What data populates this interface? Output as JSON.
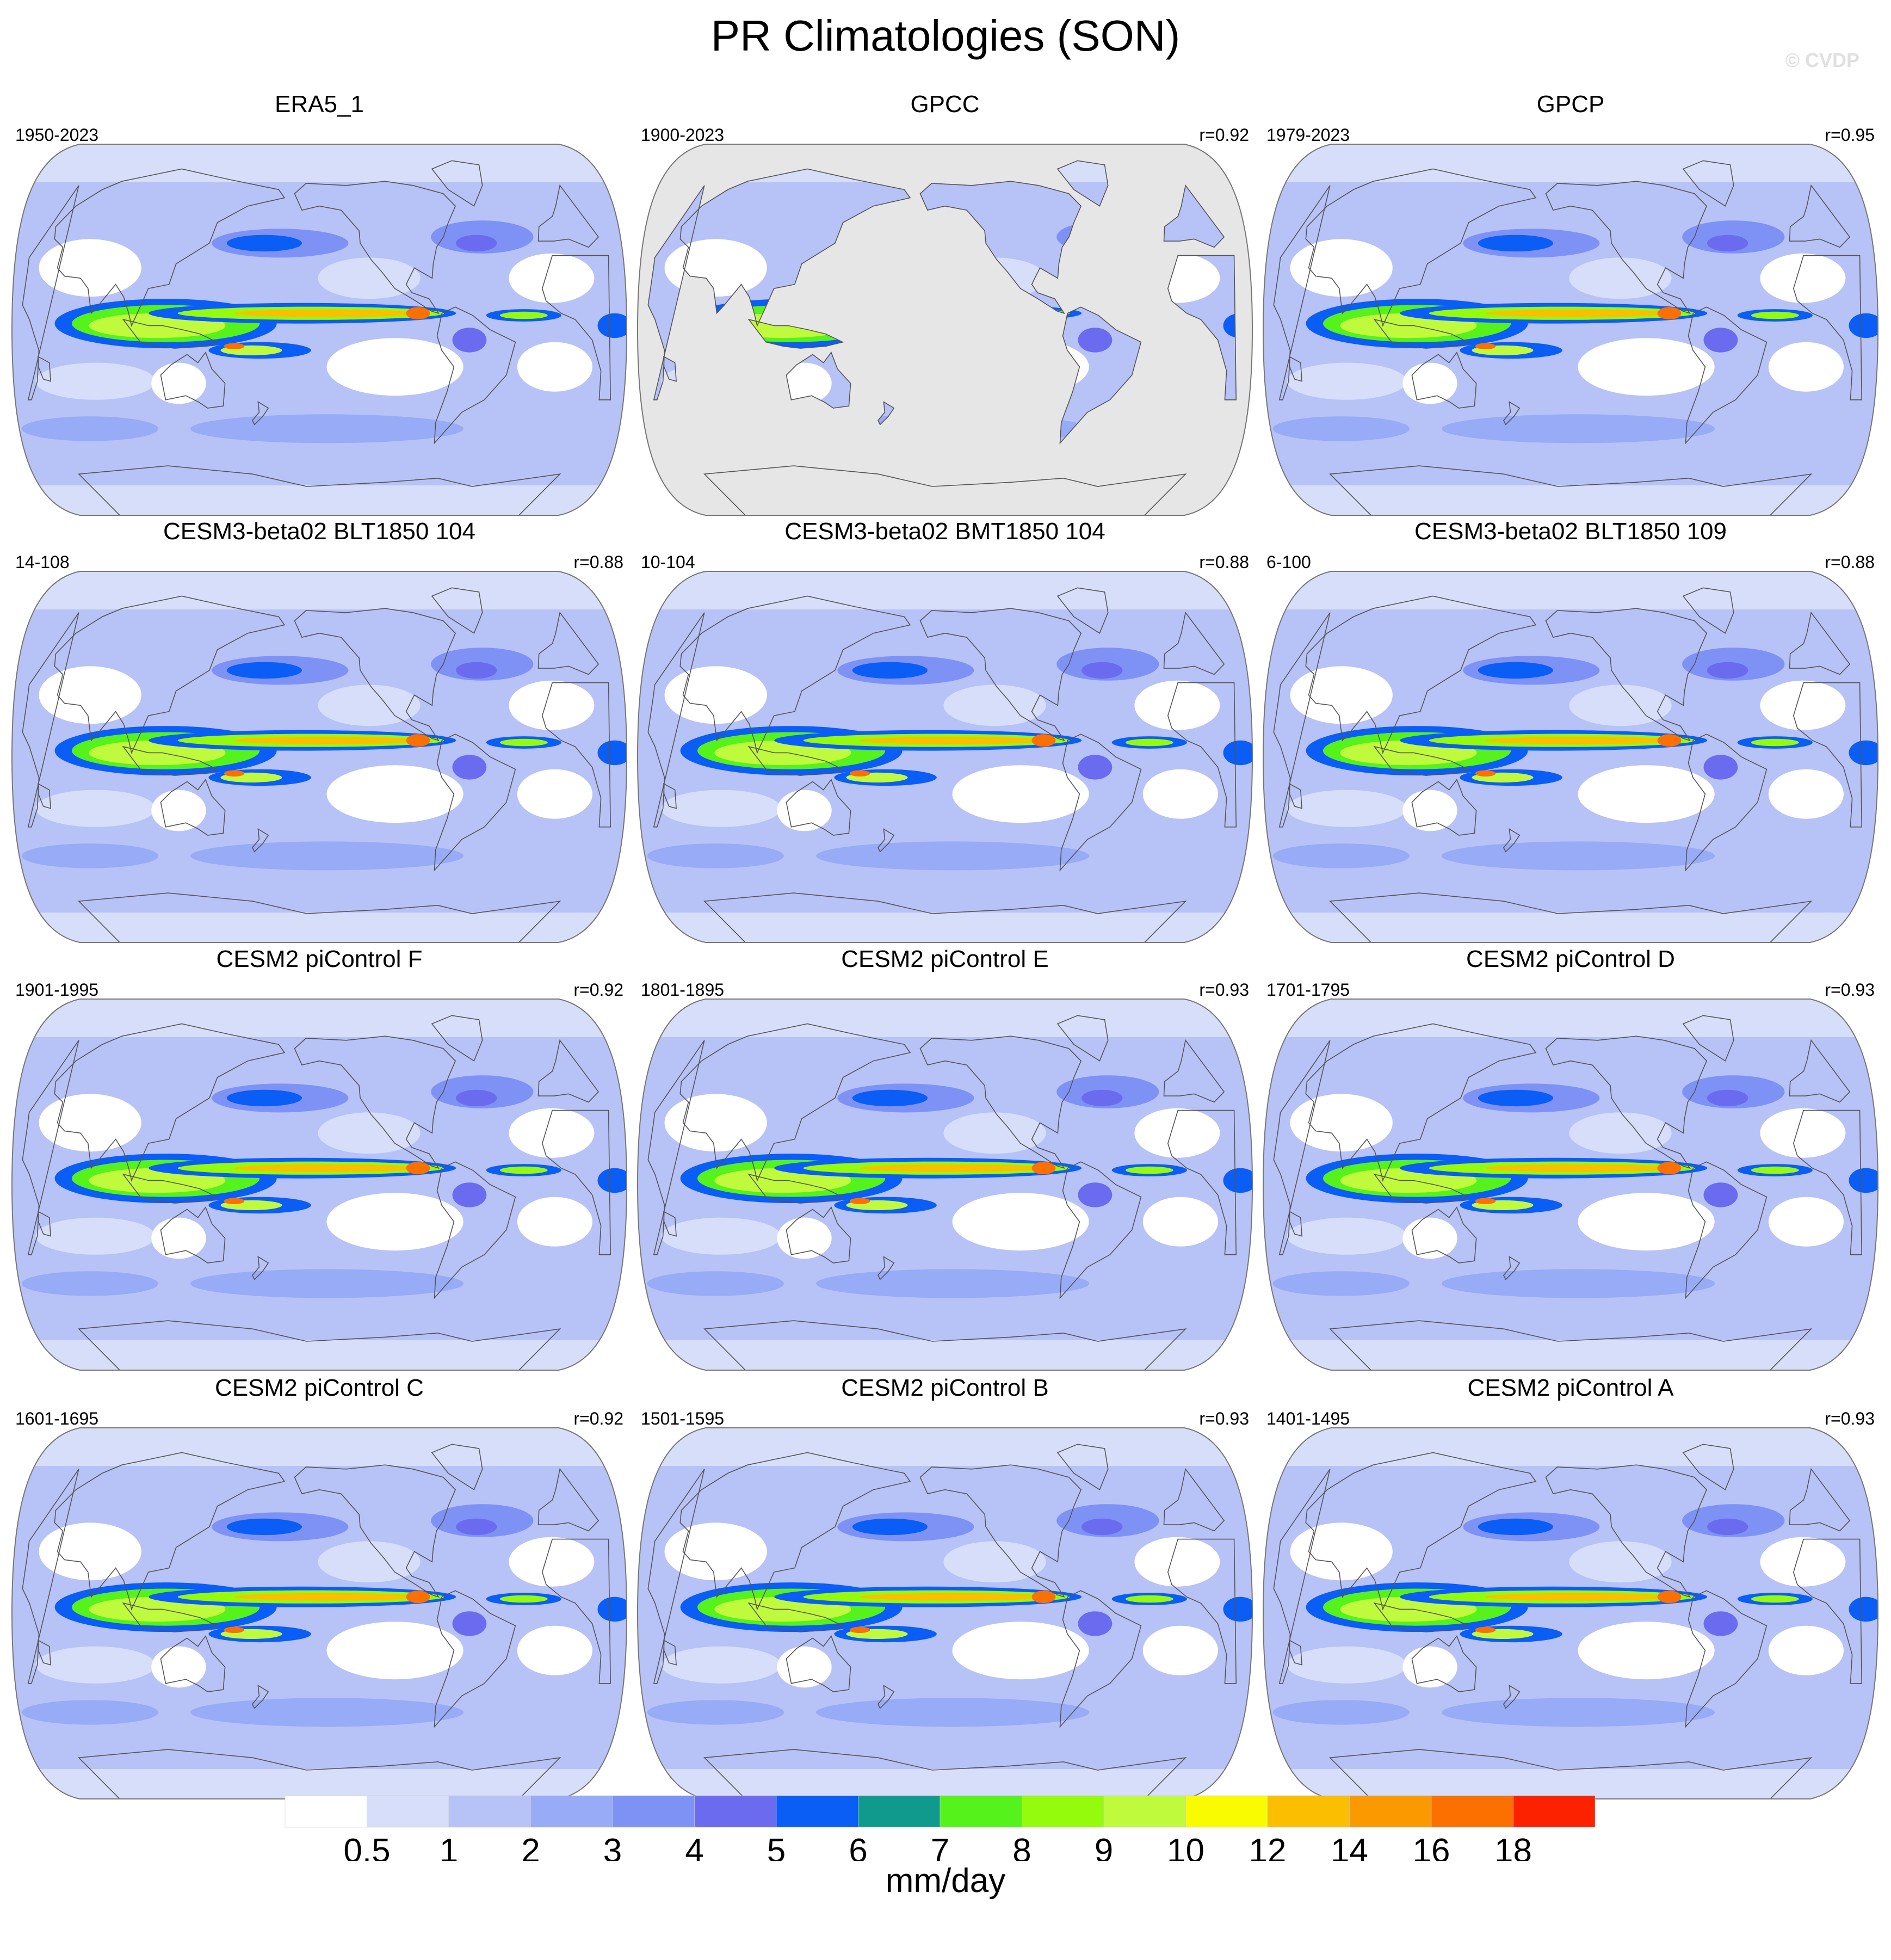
{
  "figure": {
    "title": "PR Climatologies (SON)",
    "watermark": "© CVDP"
  },
  "panels": [
    {
      "name": "ERA5_1",
      "period": "1950-2023",
      "corr": "",
      "ocean_masked": false
    },
    {
      "name": "GPCC",
      "period": "1900-2023",
      "corr": "r=0.92",
      "ocean_masked": true
    },
    {
      "name": "GPCP",
      "period": "1979-2023",
      "corr": "r=0.95",
      "ocean_masked": false
    },
    {
      "name": "CESM3-beta02 BLT1850 104",
      "period": "14-108",
      "corr": "r=0.88",
      "ocean_masked": false
    },
    {
      "name": "CESM3-beta02 BMT1850 104",
      "period": "10-104",
      "corr": "r=0.88",
      "ocean_masked": false
    },
    {
      "name": "CESM3-beta02 BLT1850 109",
      "period": "6-100",
      "corr": "r=0.88",
      "ocean_masked": false
    },
    {
      "name": "CESM2 piControl F",
      "period": "1901-1995",
      "corr": "r=0.92",
      "ocean_masked": false
    },
    {
      "name": "CESM2 piControl E",
      "period": "1801-1895",
      "corr": "r=0.93",
      "ocean_masked": false
    },
    {
      "name": "CESM2 piControl D",
      "period": "1701-1795",
      "corr": "r=0.93",
      "ocean_masked": false
    },
    {
      "name": "CESM2 piControl C",
      "period": "1601-1695",
      "corr": "r=0.92",
      "ocean_masked": false
    },
    {
      "name": "CESM2 piControl B",
      "period": "1501-1595",
      "corr": "r=0.93",
      "ocean_masked": false
    },
    {
      "name": "CESM2 piControl A",
      "period": "1401-1495",
      "corr": "r=0.93",
      "ocean_masked": false
    }
  ],
  "colorbar": {
    "units": "mm/day",
    "levels": [
      "0.5",
      "1",
      "2",
      "3",
      "4",
      "5",
      "6",
      "7",
      "8",
      "9",
      "10",
      "12",
      "14",
      "16",
      "18"
    ],
    "colors": [
      "#ffffff",
      "#d7def9",
      "#b7c2f7",
      "#97abf6",
      "#7e92f6",
      "#6b6bf0",
      "#0a5df5",
      "#109a8e",
      "#55f21b",
      "#94fb0c",
      "#bffa3c",
      "#f9fc00",
      "#fbbe00",
      "#fb9a00",
      "#fc7000",
      "#fc2200"
    ]
  },
  "colors": {
    "land_mask": "#e6e6e6",
    "coastline": "#555555",
    "map_border": "#777777"
  }
}
